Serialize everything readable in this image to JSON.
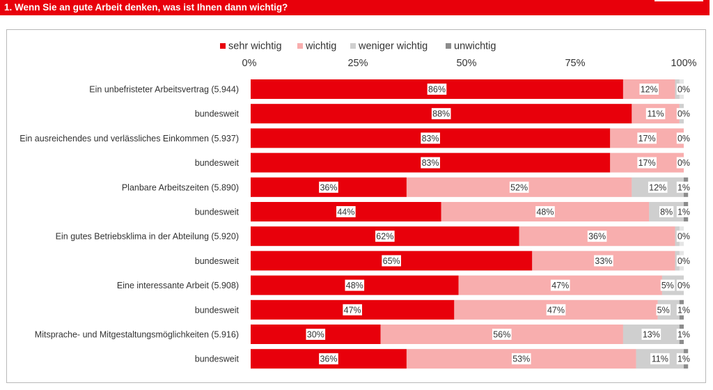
{
  "header": {
    "title": "1. Wenn Sie an gute Arbeit denken, was ist Ihnen dann wichtig?"
  },
  "colors": {
    "header": "#e8000b",
    "sehr_wichtig": "#e8000b",
    "wichtig": "#f8aeae",
    "weniger_wichtig": "#cfcfcf",
    "unwichtig": "#8c8c8c"
  },
  "chart_data": {
    "type": "bar",
    "orientation": "horizontal",
    "stacked": true,
    "title": "",
    "xlim": [
      0,
      100
    ],
    "ticks": [
      "0%",
      "25%",
      "50%",
      "75%",
      "100%"
    ],
    "tick_values": [
      0,
      25,
      50,
      75,
      100
    ],
    "legend_position": "top",
    "categories": [
      "Ein unbefristeter Arbeitsvertrag (5.944)",
      "bundesweit",
      "Ein ausreichendes und verlässliches Einkommen (5.937)",
      "bundesweit",
      "Planbare Arbeitszeiten (5.890)",
      "bundesweit",
      "Ein gutes Betriebsklima in der Abteilung (5.920)",
      "bundesweit",
      "Eine interessante Arbeit (5.908)",
      "bundesweit",
      "Mitsprache- und Mitgestaltungsmöglichkeiten (5.916)",
      "bundesweit"
    ],
    "series": [
      {
        "name": "sehr wichtig",
        "color": "#e8000b",
        "values": [
          86,
          88,
          83,
          83,
          36,
          44,
          62,
          65,
          48,
          47,
          30,
          36
        ],
        "labels": [
          "86%",
          "88%",
          "83%",
          "83%",
          "36%",
          "44%",
          "62%",
          "65%",
          "48%",
          "47%",
          "30%",
          "36%"
        ]
      },
      {
        "name": "wichtig",
        "color": "#f8aeae",
        "values": [
          12,
          11,
          17,
          17,
          52,
          48,
          36,
          33,
          47,
          47,
          56,
          53
        ],
        "labels": [
          "12%",
          "11%",
          "17%",
          "17%",
          "52%",
          "48%",
          "36%",
          "33%",
          "47%",
          "47%",
          "56%",
          "53%"
        ]
      },
      {
        "name": "weniger wichtig",
        "color": "#cfcfcf",
        "values": [
          1,
          1,
          0,
          0,
          12,
          8,
          1,
          1,
          5,
          5,
          13,
          11
        ],
        "labels": [
          "",
          "",
          "",
          "",
          "12%",
          "8%",
          "",
          "",
          "5%",
          "5%",
          "13%",
          "11%"
        ]
      },
      {
        "name": "unwichtig",
        "color": "#8c8c8c",
        "values": [
          0,
          0,
          0,
          0,
          1,
          1,
          0,
          0,
          0,
          1,
          1,
          1
        ],
        "labels": [
          "0%",
          "0%",
          "0%",
          "0%",
          "1%",
          "1%",
          "0%",
          "0%",
          "0%",
          "1%",
          "1%",
          "1%"
        ]
      }
    ]
  }
}
